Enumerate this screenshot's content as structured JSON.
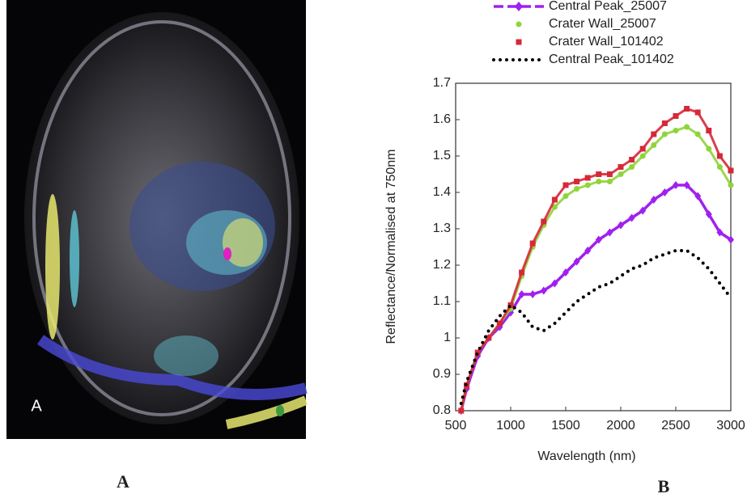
{
  "figure": {
    "panel_label": "A",
    "caption_left": "A",
    "caption_right": "B"
  },
  "chart_data": {
    "type": "line",
    "xlabel": "Wavelength (nm)",
    "ylabel": "Reflectance/Normalised at 750nm",
    "x": [
      550,
      600,
      700,
      800,
      900,
      1000,
      1100,
      1200,
      1300,
      1400,
      1500,
      1600,
      1700,
      1800,
      1900,
      2000,
      2100,
      2200,
      2300,
      2400,
      2500,
      2600,
      2700,
      2800,
      2900,
      3000
    ],
    "xlim": [
      500,
      3000
    ],
    "xticks": [
      500,
      1000,
      1500,
      2000,
      2500,
      3000
    ],
    "ylim": [
      0.8,
      1.7
    ],
    "yticks": [
      0.8,
      0.9,
      1,
      1.1,
      1.2,
      1.3,
      1.4,
      1.5,
      1.6,
      1.7
    ],
    "series": [
      {
        "name": "Central Peak_25007",
        "color": "#a020f0",
        "style": "dash-diamond",
        "values": [
          0.8,
          0.86,
          0.95,
          1.0,
          1.03,
          1.07,
          1.12,
          1.12,
          1.13,
          1.15,
          1.18,
          1.21,
          1.24,
          1.27,
          1.29,
          1.31,
          1.33,
          1.35,
          1.38,
          1.4,
          1.42,
          1.42,
          1.39,
          1.34,
          1.29,
          1.27
        ]
      },
      {
        "name": "Crater Wall_25007",
        "color": "#8fd43a",
        "style": "dot-marker",
        "values": [
          0.8,
          0.87,
          0.96,
          1.0,
          1.04,
          1.08,
          1.17,
          1.25,
          1.31,
          1.36,
          1.39,
          1.41,
          1.42,
          1.43,
          1.43,
          1.45,
          1.47,
          1.5,
          1.53,
          1.56,
          1.57,
          1.58,
          1.56,
          1.52,
          1.47,
          1.42
        ]
      },
      {
        "name": "Crater Wall_101402",
        "color": "#d62839",
        "style": "square-marker",
        "values": [
          0.8,
          0.87,
          0.96,
          1.0,
          1.04,
          1.09,
          1.18,
          1.26,
          1.32,
          1.38,
          1.42,
          1.43,
          1.44,
          1.45,
          1.45,
          1.47,
          1.49,
          1.52,
          1.56,
          1.59,
          1.61,
          1.63,
          1.62,
          1.57,
          1.5,
          1.46
        ]
      },
      {
        "name": "Central Peak_101402",
        "color": "#000000",
        "style": "dotted",
        "values": [
          0.82,
          0.88,
          0.96,
          1.02,
          1.06,
          1.09,
          1.07,
          1.03,
          1.02,
          1.04,
          1.07,
          1.1,
          1.12,
          1.14,
          1.15,
          1.17,
          1.19,
          1.2,
          1.22,
          1.23,
          1.24,
          1.24,
          1.22,
          1.19,
          1.15,
          1.11
        ]
      }
    ]
  }
}
